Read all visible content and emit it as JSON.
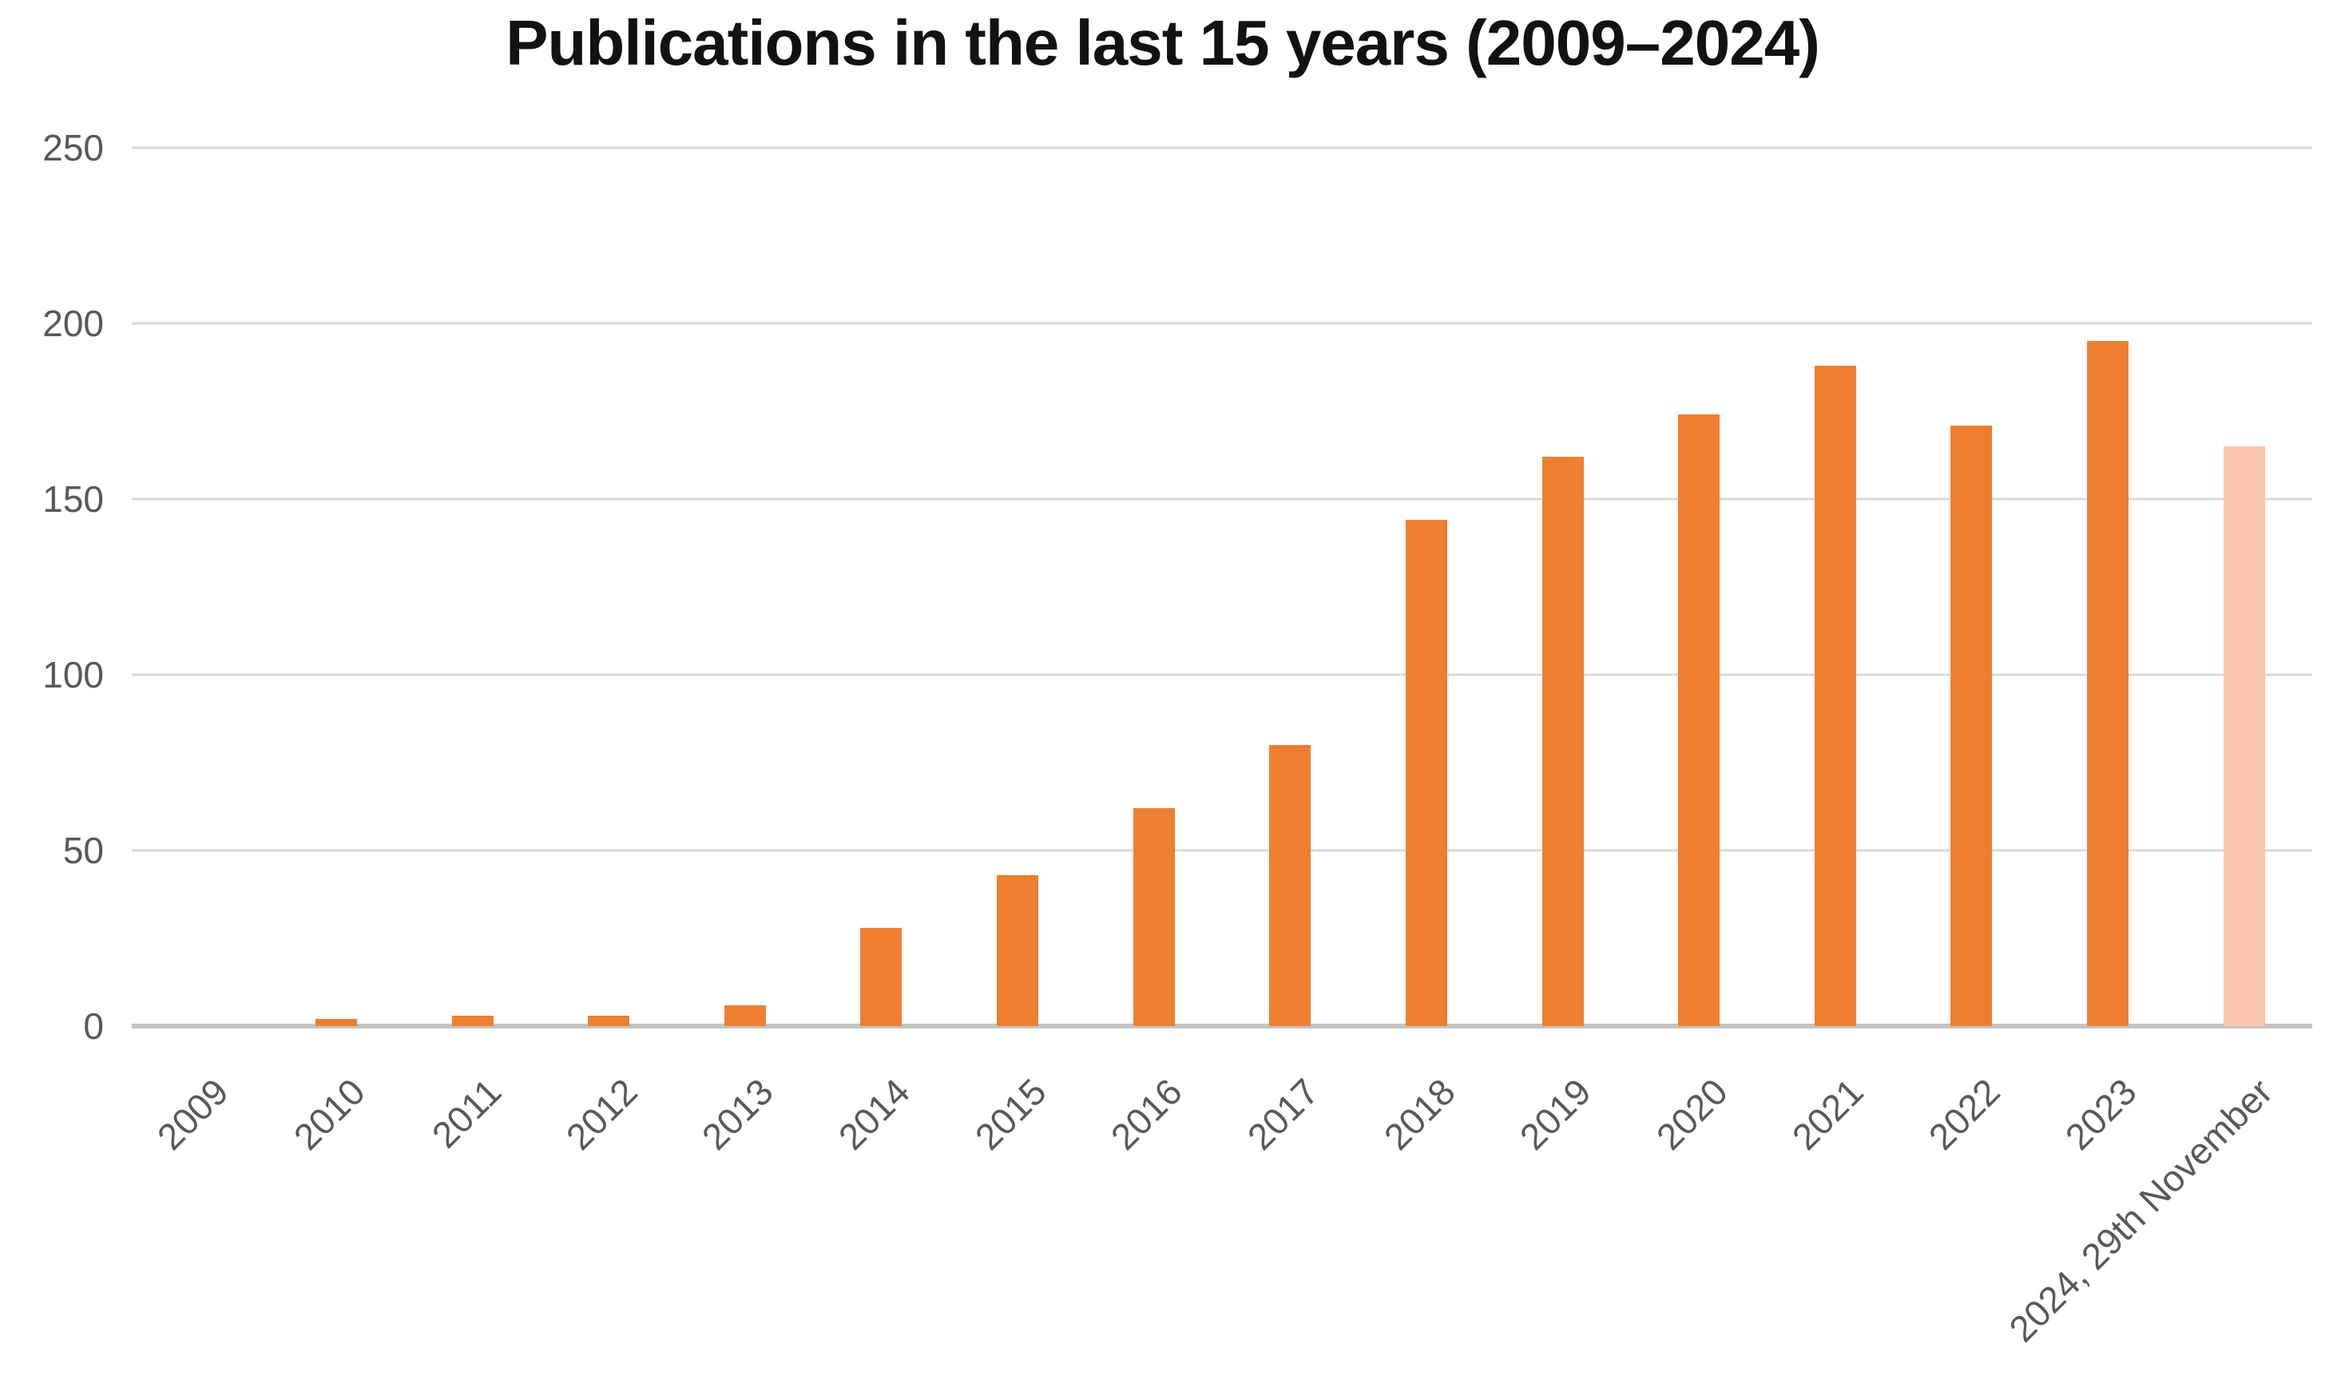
{
  "chart_data": {
    "type": "bar",
    "title": "Publications in the last 15 years (2009–2024)",
    "categories": [
      "2009",
      "2010",
      "2011",
      "2012",
      "2013",
      "2014",
      "2015",
      "2016",
      "2017",
      "2018",
      "2019",
      "2020",
      "2021",
      "2022",
      "2023",
      "2024, 29th November"
    ],
    "values": [
      0,
      2,
      3,
      3,
      6,
      28,
      43,
      62,
      80,
      144,
      162,
      174,
      188,
      171,
      195,
      165
    ],
    "xlabel": "",
    "ylabel": "",
    "ylim": [
      0,
      250
    ],
    "y_ticks": [
      0,
      50,
      100,
      150,
      200,
      250
    ],
    "grid": "horizontal",
    "legend": "none",
    "bar_colors": {
      "default": "#EE7F31",
      "last_bar": "#FAC5AD"
    }
  },
  "colors": {
    "background": "#FFFFFF",
    "title": "#121212",
    "gridline": "#D9D9D9",
    "axis_line": "#C4C4C4",
    "tick_label": "#595959"
  }
}
